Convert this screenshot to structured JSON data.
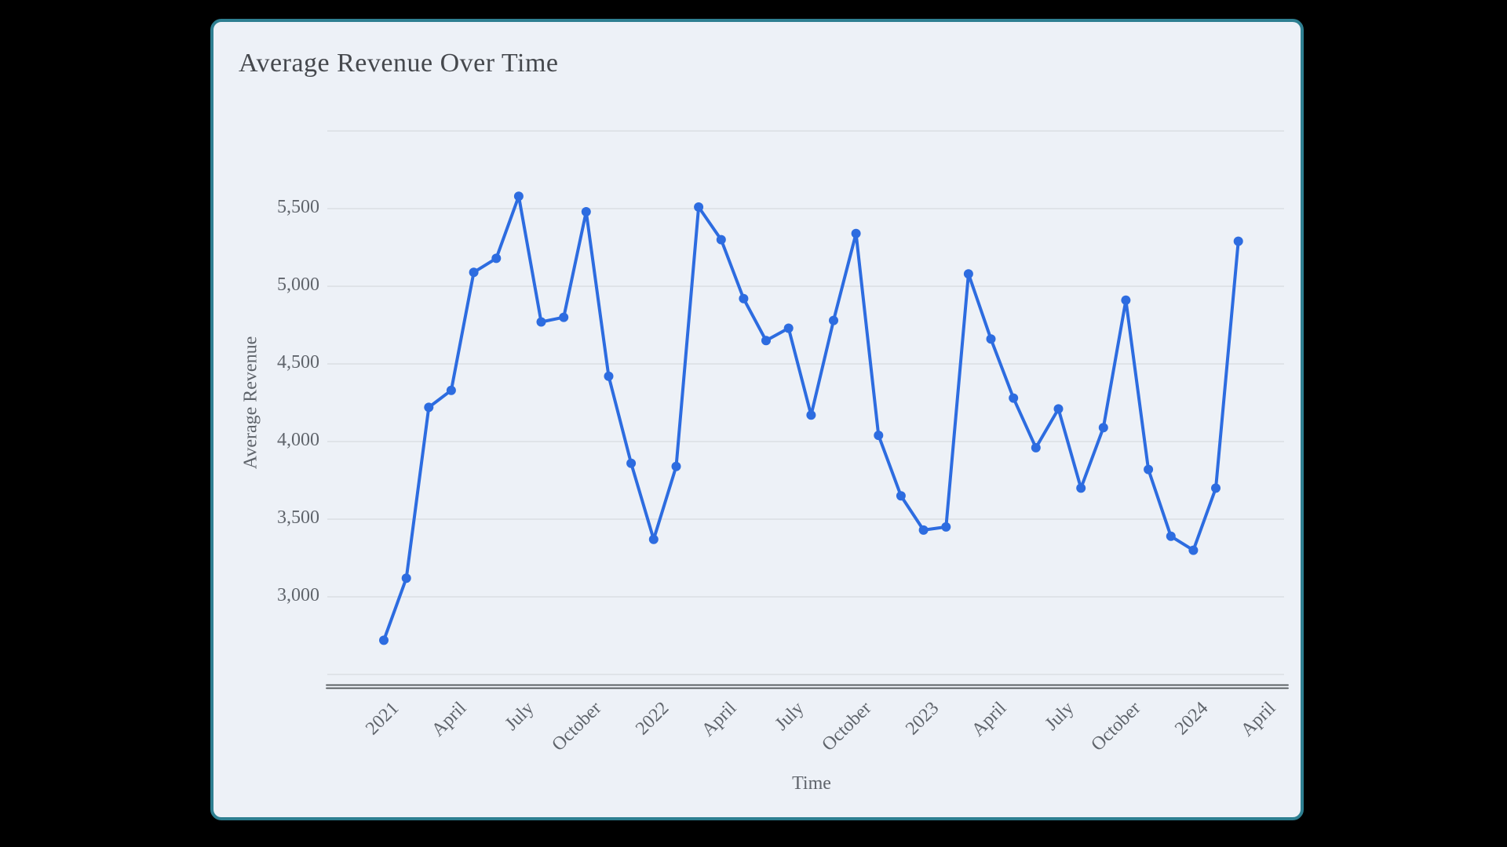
{
  "page": {
    "background": "#000000"
  },
  "card": {
    "background": "#edf1f7",
    "border_color": "#2e7f91"
  },
  "chart": {
    "title": "Average Revenue Over Time",
    "x_title": "Time",
    "y_title": "Average Revenue",
    "line_color": "#2d6ce0",
    "grid_color": "#d7dbe0",
    "axis_line_color": "#4e5357",
    "tick_text_color": "#5f646b",
    "title_color": "#45484d"
  },
  "chart_data": {
    "type": "line",
    "title": "Average Revenue Over Time",
    "xlabel": "Time",
    "ylabel": "Average Revenue",
    "x": [
      "Jan 2021",
      "Feb 2021",
      "Mar 2021",
      "Apr 2021",
      "May 2021",
      "Jun 2021",
      "Jul 2021",
      "Aug 2021",
      "Sep 2021",
      "Oct 2021",
      "Nov 2021",
      "Dec 2021",
      "Jan 2022",
      "Feb 2022",
      "Mar 2022",
      "Apr 2022",
      "May 2022",
      "Jun 2022",
      "Jul 2022",
      "Aug 2022",
      "Sep 2022",
      "Oct 2022",
      "Nov 2022",
      "Dec 2022",
      "Jan 2023",
      "Feb 2023",
      "Mar 2023",
      "Apr 2023",
      "May 2023",
      "Jun 2023",
      "Jul 2023",
      "Aug 2023",
      "Sep 2023",
      "Oct 2023",
      "Nov 2023",
      "Dec 2023",
      "Jan 2024",
      "Feb 2024",
      "Mar 2024"
    ],
    "values": [
      2720,
      3120,
      4220,
      4330,
      5090,
      5180,
      5580,
      4770,
      4800,
      5480,
      4420,
      3860,
      3370,
      3840,
      5510,
      5300,
      4920,
      4650,
      4730,
      4170,
      4780,
      5340,
      4040,
      3650,
      3430,
      3450,
      5080,
      4660,
      4280,
      3960,
      4210,
      3700,
      4090,
      4910,
      3820,
      3390,
      3300,
      3700,
      5290
    ],
    "x_tick_labels": [
      "2021",
      "April",
      "July",
      "October",
      "2022",
      "April",
      "July",
      "October",
      "2023",
      "April",
      "July",
      "October",
      "2024",
      "April"
    ],
    "x_tick_month_indices": [
      0,
      3,
      6,
      9,
      12,
      15,
      18,
      21,
      24,
      27,
      30,
      33,
      36,
      39
    ],
    "y_tick_labels": [
      "5,500",
      "5,000",
      "4,500",
      "4,000",
      "3,500",
      "3,000"
    ],
    "y_tick_values": [
      5500,
      5000,
      4500,
      4000,
      3500,
      3000
    ],
    "y_gridline_values": [
      6000,
      5500,
      5000,
      4500,
      4000,
      3500,
      3000,
      2500
    ],
    "ylim": [
      2500,
      6000
    ],
    "grid": true,
    "legend": "none",
    "marker": "circle"
  }
}
